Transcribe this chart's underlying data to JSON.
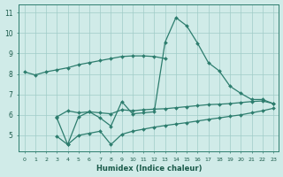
{
  "line1_x": [
    0,
    1,
    2,
    3,
    4,
    5,
    6,
    7,
    8,
    9,
    10,
    11,
    12,
    13
  ],
  "line1_y": [
    8.1,
    7.95,
    8.1,
    8.2,
    8.3,
    8.45,
    8.55,
    8.65,
    8.75,
    8.85,
    8.88,
    8.88,
    8.85,
    8.75
  ],
  "line2_x": [
    3,
    4,
    5,
    6,
    7,
    8,
    9,
    10,
    11,
    12,
    13,
    14,
    15,
    16,
    17,
    18,
    19,
    20,
    21,
    22,
    23
  ],
  "line2_y": [
    5.85,
    4.55,
    5.9,
    6.15,
    5.85,
    5.45,
    6.65,
    6.05,
    6.1,
    6.15,
    9.55,
    10.75,
    10.35,
    9.5,
    8.55,
    8.15,
    7.4,
    7.05,
    6.75,
    6.75,
    6.55
  ],
  "line3_x": [
    3,
    4,
    5,
    6,
    7,
    8,
    9,
    10,
    11,
    12,
    13,
    14,
    15,
    16,
    17,
    18,
    19,
    20,
    21,
    22,
    23
  ],
  "line3_y": [
    4.95,
    4.55,
    5.0,
    5.1,
    5.2,
    4.55,
    5.05,
    5.2,
    5.3,
    5.4,
    5.48,
    5.55,
    5.62,
    5.7,
    5.78,
    5.85,
    5.93,
    6.0,
    6.1,
    6.2,
    6.32
  ],
  "line4_x": [
    3,
    4,
    5,
    6,
    7,
    8,
    9,
    10,
    11,
    12,
    13,
    14,
    15,
    16,
    17,
    18,
    19,
    20,
    21,
    22,
    23
  ],
  "line4_y": [
    5.9,
    6.2,
    6.1,
    6.15,
    6.1,
    6.05,
    6.25,
    6.2,
    6.25,
    6.28,
    6.3,
    6.35,
    6.4,
    6.45,
    6.5,
    6.52,
    6.55,
    6.6,
    6.65,
    6.68,
    6.55
  ],
  "line_color": "#2d7d6e",
  "bg_color": "#d0ebe8",
  "grid_color": "#a0ccc8",
  "xlabel": "Humidex (Indice chaleur)",
  "ylabel_ticks": [
    5,
    6,
    7,
    8,
    9,
    10,
    11
  ],
  "xlim": [
    -0.5,
    23.5
  ],
  "ylim": [
    4.2,
    11.4
  ]
}
